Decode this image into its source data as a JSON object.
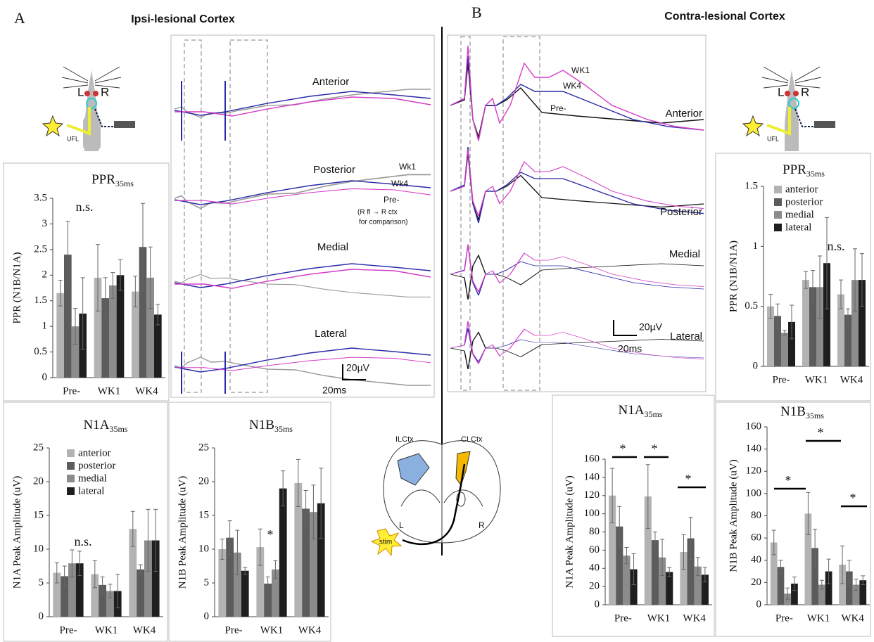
{
  "panels": {
    "a": {
      "label": "A",
      "title": "Ipsi-lesional Cortex"
    },
    "b": {
      "label": "B",
      "title": "Contra-lesional Cortex"
    }
  },
  "ipsi_traces": {
    "regions": [
      "Anterior",
      "Posterior",
      "Medial",
      "Lateral"
    ],
    "series_labels": [
      "Wk1",
      "Wk4",
      "Pre-"
    ],
    "note": [
      "(R fl → R ctx",
      "for comparison)"
    ],
    "scale_v": "20µV",
    "scale_t": "20ms"
  },
  "contra_traces": {
    "regions": [
      "Anterior",
      "Posterior",
      "Medial",
      "Lateral"
    ],
    "series_labels": [
      "WK1",
      "WK4",
      "Pre-"
    ],
    "scale_v": "20µV",
    "scale_t": "20ms"
  },
  "mouse_left": {
    "left": "L",
    "right": "R",
    "limb": "UFL"
  },
  "mouse_right": {
    "left": "L",
    "right": "R",
    "limb": "UFL"
  },
  "brain": {
    "ipsi": "ILCtx",
    "contra": "CLCtx",
    "left": "L",
    "right": "R",
    "stim": "stim"
  },
  "chart_data": [
    {
      "type": "bar",
      "title": "PPR",
      "title_subscript": "35ms",
      "ylabel": "PPR (N1B/N1A)",
      "categories": [
        "Pre-",
        "WK1",
        "WK4"
      ],
      "series": [
        {
          "color": "#b3b3b3",
          "values": [
            1.65,
            1.95,
            1.68
          ],
          "errors": [
            0.25,
            0.65,
            0.3
          ]
        },
        {
          "color": "#5c5c5c",
          "values": [
            2.4,
            1.55,
            2.55
          ],
          "errors": [
            0.65,
            0.4,
            0.85
          ]
        },
        {
          "color": "#8c8c8c",
          "values": [
            1.0,
            1.8,
            1.95
          ],
          "errors": [
            0.35,
            0.25,
            0.6
          ]
        },
        {
          "color": "#1e1e1e",
          "values": [
            1.25,
            2.0,
            1.23
          ],
          "errors": [
            0.7,
            0.3,
            0.2
          ]
        }
      ],
      "ylim": [
        0,
        3.5
      ],
      "yticks": [
        0,
        0.5,
        1,
        1.5,
        2,
        2.5,
        3,
        3.5
      ],
      "legend": false,
      "annotations": [
        "n.s."
      ]
    },
    {
      "type": "bar",
      "title": "N1A",
      "title_subscript": "35ms",
      "ylabel": "N1A Peak Amplitude (uV)",
      "categories": [
        "Pre-",
        "WK1",
        "WK4"
      ],
      "series": [
        {
          "name": "anterior",
          "color": "#b3b3b3",
          "values": [
            6.5,
            6.3,
            13
          ],
          "errors": [
            1.5,
            2,
            2.6
          ]
        },
        {
          "name": "posterior",
          "color": "#5c5c5c",
          "values": [
            6,
            4.7,
            7
          ],
          "errors": [
            1.5,
            1.2,
            0.7
          ]
        },
        {
          "name": "medial",
          "color": "#8c8c8c",
          "values": [
            7.9,
            3.8,
            11.3
          ],
          "errors": [
            2,
            1,
            4.6
          ]
        },
        {
          "name": "lateral",
          "color": "#1e1e1e",
          "values": [
            7.9,
            3.8,
            11.3
          ],
          "errors": [
            1.8,
            2.5,
            4.6
          ]
        }
      ],
      "ylim": [
        0,
        25
      ],
      "yticks": [
        0,
        5,
        10,
        15,
        20,
        25
      ],
      "legend": true,
      "annotations": [
        "n.s."
      ]
    },
    {
      "type": "bar",
      "title": "N1B",
      "title_subscript": "35ms",
      "ylabel": "N1B Peak Amplitude (uV)",
      "categories": [
        "Pre-",
        "WK1",
        "WK4"
      ],
      "series": [
        {
          "color": "#b3b3b3",
          "values": [
            10,
            10.3,
            19.8
          ],
          "errors": [
            1.5,
            2.7,
            3.5
          ]
        },
        {
          "color": "#5c5c5c",
          "values": [
            11.7,
            4.9,
            16
          ],
          "errors": [
            2.5,
            1,
            2.7
          ]
        },
        {
          "color": "#8c8c8c",
          "values": [
            9.5,
            7,
            15.5
          ],
          "errors": [
            3.3,
            1.3,
            4
          ]
        },
        {
          "color": "#1e1e1e",
          "values": [
            6.8,
            19,
            16.8
          ],
          "errors": [
            0.5,
            2.6,
            5.2
          ]
        }
      ],
      "ylim": [
        0,
        25
      ],
      "yticks": [
        0,
        5,
        10,
        15,
        20,
        25
      ],
      "legend": false,
      "annotations": [
        "*"
      ]
    },
    {
      "type": "bar",
      "title": "PPR",
      "title_subscript": "35ms",
      "ylabel": "PPR (N1B/N1A)",
      "categories": [
        "Pre-",
        "WK1",
        "WK4"
      ],
      "series": [
        {
          "name": "anterior",
          "color": "#b3b3b3",
          "values": [
            0.5,
            0.72,
            0.6
          ],
          "errors": [
            0.1,
            0.07,
            0.12
          ]
        },
        {
          "name": "posterior",
          "color": "#5c5c5c",
          "values": [
            0.42,
            0.66,
            0.43
          ],
          "errors": [
            0.1,
            0.14,
            0.05
          ]
        },
        {
          "name": "medial",
          "color": "#8c8c8c",
          "values": [
            0.28,
            0.66,
            0.72
          ],
          "errors": [
            0.02,
            0.26,
            0.26
          ]
        },
        {
          "name": "lateral",
          "color": "#1e1e1e",
          "values": [
            0.37,
            0.86,
            0.72
          ],
          "errors": [
            0.14,
            0.38,
            0.22
          ]
        }
      ],
      "ylim": [
        0,
        1.5
      ],
      "yticks": [
        0,
        0.5,
        1,
        1.5
      ],
      "legend": true,
      "annotations": [
        "n.s."
      ]
    },
    {
      "type": "bar",
      "title": "N1A",
      "title_subscript": "35ms",
      "ylabel": "N1A Peak Amplitude (uV)",
      "categories": [
        "Pre-",
        "WK1",
        "WK4"
      ],
      "series": [
        {
          "color": "#b3b3b3",
          "values": [
            120,
            119,
            58
          ],
          "errors": [
            30,
            35,
            19
          ]
        },
        {
          "color": "#5c5c5c",
          "values": [
            86,
            71,
            73
          ],
          "errors": [
            22,
            9,
            23
          ]
        },
        {
          "color": "#8c8c8c",
          "values": [
            54,
            52,
            42
          ],
          "errors": [
            9,
            20,
            10
          ]
        },
        {
          "color": "#1e1e1e",
          "values": [
            39,
            36,
            33
          ],
          "errors": [
            17,
            5,
            8
          ]
        }
      ],
      "ylim": [
        0,
        160
      ],
      "yticks": [
        0,
        20,
        40,
        60,
        80,
        100,
        120,
        140,
        160
      ],
      "legend": false,
      "annotations": [
        "*",
        "*",
        "*"
      ]
    },
    {
      "type": "bar",
      "title": "N1B",
      "title_subscript": "35ms",
      "ylabel": "N1B Peak Amplitude (uV)",
      "categories": [
        "Pre-",
        "WK1",
        "WK4"
      ],
      "series": [
        {
          "color": "#b3b3b3",
          "values": [
            56,
            82,
            36
          ],
          "errors": [
            11,
            19,
            17
          ]
        },
        {
          "color": "#5c5c5c",
          "values": [
            34,
            51,
            30
          ],
          "errors": [
            6,
            17,
            10
          ]
        },
        {
          "color": "#8c8c8c",
          "values": [
            10,
            18,
            18
          ],
          "errors": [
            5,
            4,
            5
          ]
        },
        {
          "color": "#1e1e1e",
          "values": [
            19,
            30,
            22
          ],
          "errors": [
            6,
            11,
            4
          ]
        }
      ],
      "ylim": [
        0,
        160
      ],
      "yticks": [
        0,
        20,
        40,
        60,
        80,
        100,
        120,
        140,
        160
      ],
      "legend": false,
      "annotations": [
        "*",
        "*",
        "*"
      ]
    }
  ]
}
